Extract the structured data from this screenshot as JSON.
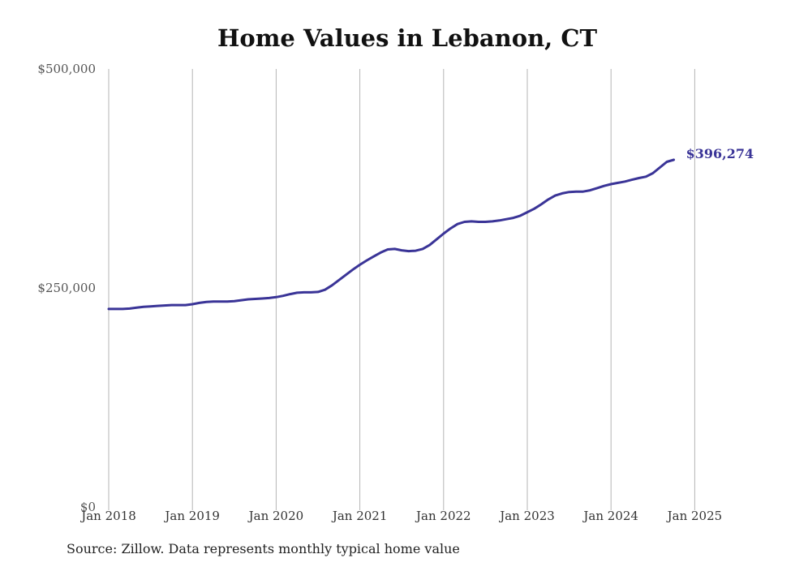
{
  "chart_data": {
    "type": "line",
    "title": "Home Values in Lebanon, CT",
    "xlabel": "",
    "ylabel": "",
    "ylim": [
      0,
      500000
    ],
    "y_ticks": [
      "$0",
      "$250,000",
      "$500,000"
    ],
    "x_ticks": [
      "Jan 2018",
      "Jan 2019",
      "Jan 2020",
      "Jan 2021",
      "Jan 2022",
      "Jan 2023",
      "Jan 2024",
      "Jan 2025"
    ],
    "grid": "vertical",
    "line_color": "#3a3497",
    "end_label": "$396,274",
    "series": [
      {
        "values": [
          226000,
          226000,
          226000,
          226500,
          227500,
          228500,
          229000,
          229500,
          230000,
          230500,
          230500,
          230500,
          231500,
          233000,
          234000,
          234500,
          234500,
          234500,
          235000,
          236000,
          237000,
          237500,
          238000,
          238500,
          239500,
          241000,
          243000,
          244500,
          245000,
          245000,
          245500,
          248000,
          253000,
          259000,
          265000,
          271000,
          276500,
          281500,
          286000,
          290500,
          294000,
          294500,
          293000,
          292000,
          292500,
          294500,
          299000,
          305500,
          312000,
          318000,
          323000,
          325500,
          326000,
          325500,
          325500,
          326000,
          327000,
          328500,
          330000,
          332500,
          336500,
          340500,
          345500,
          351000,
          355500,
          358000,
          359500,
          360000,
          360000,
          361500,
          364000,
          366500,
          368500,
          370000,
          371500,
          373500,
          375500,
          377000,
          381000,
          387500,
          394000,
          396274
        ]
      }
    ]
  },
  "source_note": "Source: Zillow. Data represents monthly typical home value"
}
